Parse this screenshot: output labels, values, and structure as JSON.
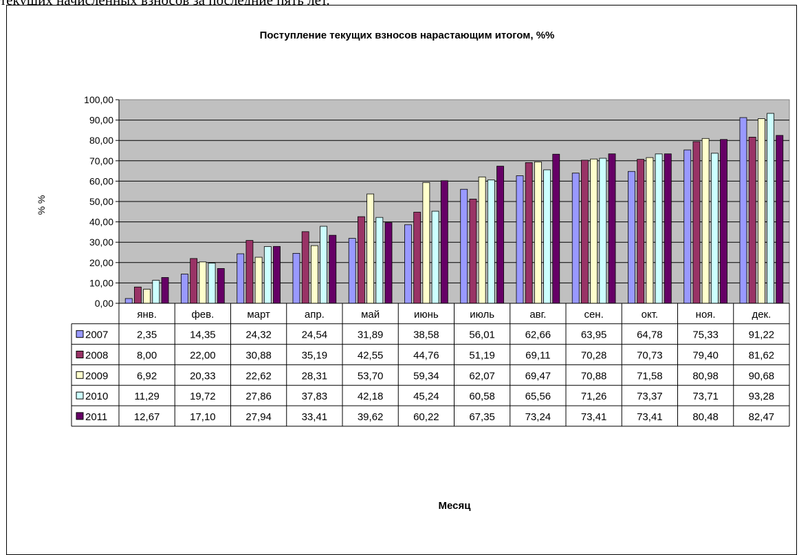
{
  "document": {
    "top_text": "текущих начисленных взносов за последние пять лет."
  },
  "chart_data": {
    "type": "bar",
    "title": "Поступление текущих  взносов нарастающим итогом, %%",
    "xlabel": "Месяц",
    "ylabel": "% %",
    "ylim": [
      0,
      100
    ],
    "yticks": [
      "0,00",
      "10,00",
      "20,00",
      "30,00",
      "40,00",
      "50,00",
      "60,00",
      "70,00",
      "80,00",
      "90,00",
      "100,00"
    ],
    "grid": true,
    "legend": "data-table",
    "plot_background": "#c0c0c0",
    "categories": [
      "янв.",
      "фев.",
      "март",
      "апр.",
      "май",
      "июнь",
      "июль",
      "авг.",
      "сен.",
      "окт.",
      "ноя.",
      "дек."
    ],
    "series": [
      {
        "name": "2007",
        "color": "#9999ff",
        "values": [
          2.35,
          14.35,
          24.32,
          24.54,
          31.89,
          38.58,
          56.01,
          62.66,
          63.95,
          64.78,
          75.33,
          91.22
        ],
        "labels": [
          "2,35",
          "14,35",
          "24,32",
          "24,54",
          "31,89",
          "38,58",
          "56,01",
          "62,66",
          "63,95",
          "64,78",
          "75,33",
          "91,22"
        ]
      },
      {
        "name": "2008",
        "color": "#993366",
        "values": [
          8.0,
          22.0,
          30.88,
          35.19,
          42.55,
          44.76,
          51.19,
          69.11,
          70.28,
          70.73,
          79.4,
          81.62
        ],
        "labels": [
          "8,00",
          "22,00",
          "30,88",
          "35,19",
          "42,55",
          "44,76",
          "51,19",
          "69,11",
          "70,28",
          "70,73",
          "79,40",
          "81,62"
        ]
      },
      {
        "name": "2009",
        "color": "#ffffcc",
        "values": [
          6.92,
          20.33,
          22.62,
          28.31,
          53.7,
          59.34,
          62.07,
          69.47,
          70.88,
          71.58,
          80.98,
          90.68
        ],
        "labels": [
          "6,92",
          "20,33",
          "22,62",
          "28,31",
          "53,70",
          "59,34",
          "62,07",
          "69,47",
          "70,88",
          "71,58",
          "80,98",
          "90,68"
        ]
      },
      {
        "name": "2010",
        "color": "#ccffff",
        "values": [
          11.29,
          19.72,
          27.86,
          37.83,
          42.18,
          45.24,
          60.58,
          65.56,
          71.26,
          73.37,
          73.71,
          93.28
        ],
        "labels": [
          "11,29",
          "19,72",
          "27,86",
          "37,83",
          "42,18",
          "45,24",
          "60,58",
          "65,56",
          "71,26",
          "73,37",
          "73,71",
          "93,28"
        ]
      },
      {
        "name": "2011",
        "color": "#660066",
        "values": [
          12.67,
          17.1,
          27.94,
          33.41,
          39.62,
          60.22,
          67.35,
          73.24,
          73.41,
          73.41,
          80.48,
          82.47
        ],
        "labels": [
          "12,67",
          "17,10",
          "27,94",
          "33,41",
          "39,62",
          "60,22",
          "67,35",
          "73,24",
          "73,41",
          "73,41",
          "80,48",
          "82,47"
        ]
      }
    ]
  }
}
